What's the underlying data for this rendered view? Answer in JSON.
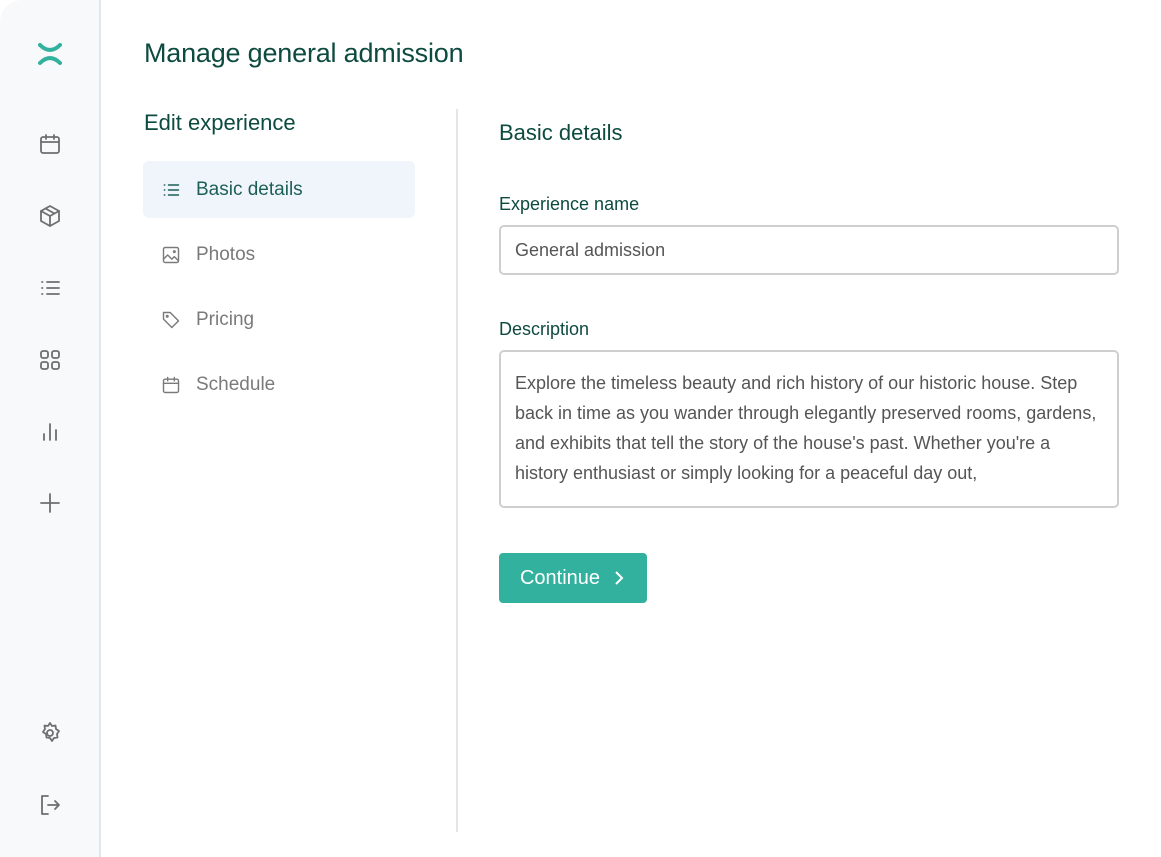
{
  "brand": {
    "accent": "#33b19f",
    "heading_color": "#0d4a3f"
  },
  "rail": {
    "icons": [
      "logo-icon",
      "calendar-icon",
      "box-icon",
      "list-icon",
      "grid-icon",
      "bar-chart-icon",
      "plus-icon",
      "gear-icon",
      "logout-icon"
    ]
  },
  "page": {
    "title": "Manage general admission"
  },
  "subnav": {
    "title": "Edit experience",
    "items": [
      {
        "label": "Basic details",
        "icon": "list-icon",
        "active": true
      },
      {
        "label": "Photos",
        "icon": "image-icon"
      },
      {
        "label": "Pricing",
        "icon": "tag-icon"
      },
      {
        "label": "Schedule",
        "icon": "calendar-icon"
      }
    ]
  },
  "form": {
    "title": "Basic details",
    "name_label": "Experience name",
    "name_value": "General admission",
    "description_label": "Description",
    "description_value": "Explore the timeless beauty and rich history of our historic house. Step back in time as you wander through elegantly preserved rooms, gardens, and exhibits that tell the story of the house's past. Whether you're a history enthusiast or simply looking for a peaceful day out,",
    "continue_label": "Continue"
  }
}
